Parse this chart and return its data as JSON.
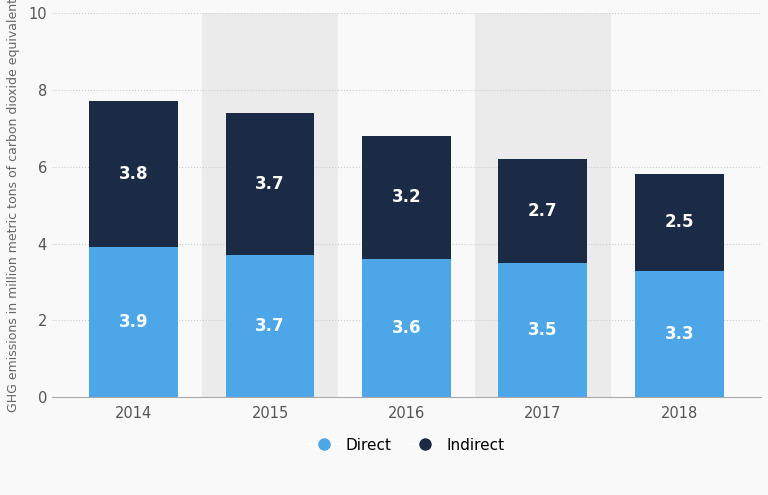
{
  "years": [
    "2014",
    "2015",
    "2016",
    "2017",
    "2018"
  ],
  "direct": [
    3.9,
    3.7,
    3.6,
    3.5,
    3.3
  ],
  "indirect": [
    3.8,
    3.7,
    3.2,
    2.7,
    2.5
  ],
  "direct_color": "#4da6e8",
  "indirect_color": "#1b2a45",
  "ylabel": "GHG emissions in million metric tons of carbon dioxide equivalent",
  "ylim": [
    0,
    10
  ],
  "yticks": [
    0,
    2,
    4,
    6,
    8,
    10
  ],
  "background_color": "#f9f9f9",
  "stripe_color": "#ebebeb",
  "legend_direct": "Direct",
  "legend_indirect": "Indirect",
  "label_fontsize": 12,
  "tick_fontsize": 10.5,
  "legend_fontsize": 11,
  "bar_width": 0.65,
  "stripe_indices": [
    1,
    3
  ]
}
